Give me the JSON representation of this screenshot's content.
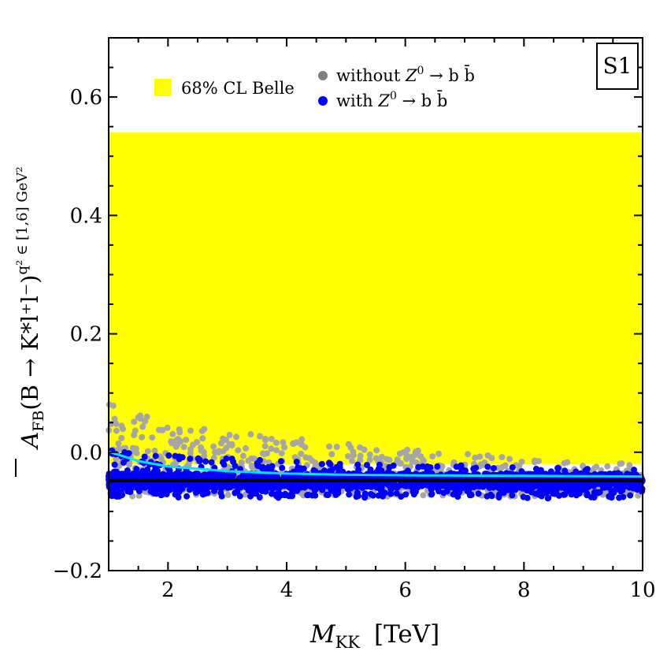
{
  "chart_data": {
    "type": "scatter",
    "panel_label": "S1",
    "x_axis": {
      "label_main": "M",
      "label_sub": "KK",
      "label_unit": "[TeV]",
      "range": [
        1,
        10
      ],
      "ticks": [
        2,
        4,
        6,
        8,
        10
      ],
      "tick_labels": [
        "2",
        "4",
        "6",
        "8",
        "10"
      ]
    },
    "y_axis": {
      "label_main": "A",
      "label_sub": "FB",
      "label_expr": "(B → K*l⁺l⁻)",
      "label_super": "q² ∈ [1,6] GeV²",
      "range": [
        -0.2,
        0.7
      ],
      "ticks": [
        -0.2,
        0.0,
        0.2,
        0.4,
        0.6
      ],
      "tick_labels": [
        "−0.2",
        "0.0",
        "0.2",
        "0.4",
        "0.6"
      ]
    },
    "band": {
      "name": "68% CL Belle",
      "y_min": -0.02,
      "y_max": 0.54,
      "color": "#ffff00"
    },
    "series": [
      {
        "name": "without Z0 → b b̄",
        "legend_prefix": "without ",
        "legend_z": "Z",
        "legend_zsup": "0",
        "legend_rest": " → b b̄",
        "color": "#a6a6a6",
        "upper_envelope": {
          "x": [
            1.0,
            1.5,
            2.0,
            3.0,
            4.0,
            5.0,
            6.0,
            8.0,
            10.0
          ],
          "y": [
            0.085,
            0.065,
            0.05,
            0.035,
            0.025,
            0.015,
            0.005,
            -0.01,
            -0.02
          ]
        },
        "lower_bound": -0.075,
        "point_count": 2600
      },
      {
        "name": "with Z0 → b b̄",
        "legend_prefix": "with ",
        "legend_z": "Z",
        "legend_zsup": "0",
        "legend_rest": " → b b̄",
        "color": "#0000ff",
        "upper_envelope": {
          "x": [
            1.0,
            1.5,
            2.0,
            3.0,
            4.0,
            5.0,
            6.0,
            8.0,
            10.0
          ],
          "y": [
            0.005,
            0.0,
            -0.005,
            -0.01,
            -0.015,
            -0.018,
            -0.02,
            -0.025,
            -0.03
          ]
        },
        "lower_bound": -0.078,
        "point_count": 2200
      }
    ],
    "lines": [
      {
        "name": "SM value",
        "color": "#000000",
        "x": [
          1,
          10
        ],
        "y": [
          -0.048,
          -0.048
        ]
      },
      {
        "name": "fit curve",
        "color": "#00e5ff",
        "x": [
          1.0,
          1.5,
          2.0,
          3.0,
          4.0,
          5.0,
          6.0,
          8.0,
          10.0
        ],
        "y": [
          0.001,
          -0.015,
          -0.024,
          -0.032,
          -0.036,
          -0.038,
          -0.039,
          -0.04,
          -0.041
        ]
      }
    ]
  }
}
